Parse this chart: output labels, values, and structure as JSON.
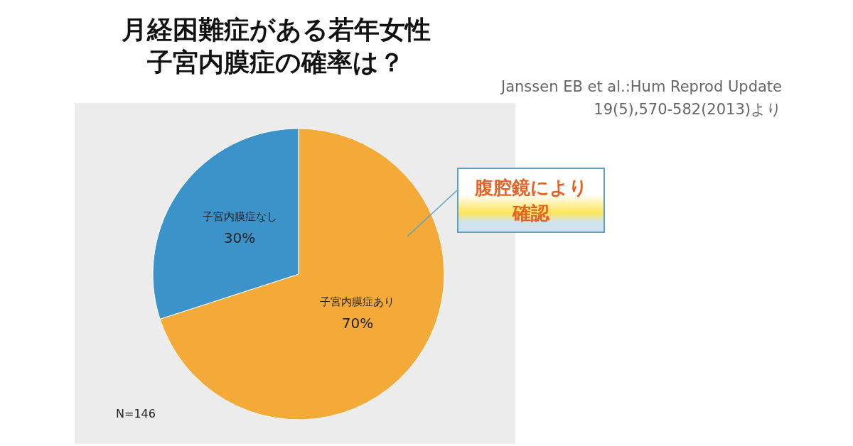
{
  "chart_data": {
    "type": "pie",
    "title": "月経困難症がある若年女性",
    "subtitle": "子宮内膜症の確率は？",
    "categories": [
      "子宮内膜症あり",
      "子宮内膜症なし"
    ],
    "values": [
      70,
      30
    ],
    "colors": [
      "#f4aa38",
      "#3b93c9"
    ],
    "value_labels": [
      "70%",
      "30%"
    ],
    "legend": false,
    "annotations": [
      "腹腔鏡により確認",
      "N=146",
      "Janssen EB et al.:Hum Reprod Update\n19(5),570-582(2013)より"
    ]
  }
}
